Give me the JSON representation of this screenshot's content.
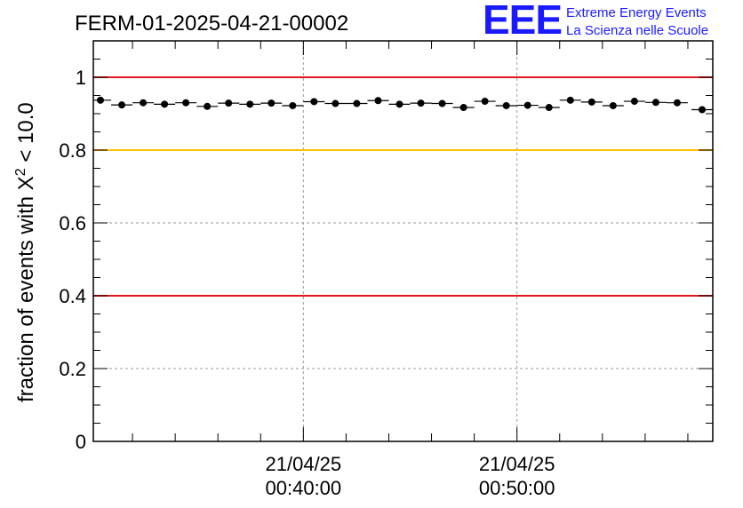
{
  "header": {
    "run_title": "FERM-01-2025-04-21-00002",
    "logo_letters": "EEE",
    "logo_line1": "Extreme Energy Events",
    "logo_line2": "La Scienza nelle Scuole"
  },
  "chart_data": {
    "type": "scatter",
    "ylabel_prefix": "fraction of events with ",
    "ylabel_symbol": "X",
    "ylabel_sup": "2",
    "ylabel_suffix": " < 10.0",
    "ylim": [
      0,
      1.1
    ],
    "y_ticks": [
      {
        "value": 0,
        "label": "0"
      },
      {
        "value": 0.2,
        "label": "0.2"
      },
      {
        "value": 0.4,
        "label": "0.4"
      },
      {
        "value": 0.6,
        "label": "0.6"
      },
      {
        "value": 0.8,
        "label": "0.8"
      },
      {
        "value": 1.0,
        "label": "1"
      }
    ],
    "x_range_minutes": [
      "00:30:10",
      "00:59:10"
    ],
    "x_major_ticks": [
      {
        "time": "00:40:00",
        "date_label": "21/04/25",
        "time_label": "00:40:00"
      },
      {
        "time": "00:50:00",
        "date_label": "21/04/25",
        "time_label": "00:50:00"
      }
    ],
    "reference_lines": [
      {
        "value": 1.0,
        "color": "#e0191b"
      },
      {
        "value": 0.8,
        "color": "#ffc000"
      },
      {
        "value": 0.4,
        "color": "#e0191b"
      }
    ],
    "grid": true,
    "marker_color": "#000000",
    "series": [
      {
        "x": [
          "00:30:30",
          "00:31:30",
          "00:32:30",
          "00:33:30",
          "00:34:30",
          "00:35:30",
          "00:36:30",
          "00:37:30",
          "00:38:30",
          "00:39:30",
          "00:40:30",
          "00:41:30",
          "00:42:30",
          "00:43:30",
          "00:44:30",
          "00:45:30",
          "00:46:30",
          "00:47:30",
          "00:48:30",
          "00:49:30",
          "00:50:30",
          "00:51:30",
          "00:52:30",
          "00:53:30",
          "00:54:30",
          "00:55:30",
          "00:56:30",
          "00:57:30",
          "00:58:40"
        ],
        "values": [
          0.937,
          0.924,
          0.93,
          0.926,
          0.93,
          0.92,
          0.929,
          0.926,
          0.929,
          0.922,
          0.933,
          0.928,
          0.928,
          0.936,
          0.926,
          0.929,
          0.928,
          0.917,
          0.934,
          0.922,
          0.923,
          0.917,
          0.937,
          0.932,
          0.922,
          0.934,
          0.931,
          0.93,
          0.911
        ],
        "y_err": [
          0.009,
          0.005,
          0.004,
          0.004,
          0.004,
          0.004,
          0.004,
          0.004,
          0.004,
          0.004,
          0.004,
          0.004,
          0.004,
          0.004,
          0.004,
          0.004,
          0.004,
          0.004,
          0.004,
          0.004,
          0.004,
          0.004,
          0.004,
          0.004,
          0.004,
          0.004,
          0.004,
          0.004,
          0.006
        ],
        "x_half_width_seconds": [
          30,
          30,
          30,
          30,
          30,
          30,
          30,
          30,
          30,
          30,
          30,
          30,
          30,
          30,
          30,
          30,
          30,
          30,
          30,
          30,
          30,
          30,
          30,
          30,
          30,
          30,
          30,
          30,
          30
        ]
      }
    ]
  }
}
